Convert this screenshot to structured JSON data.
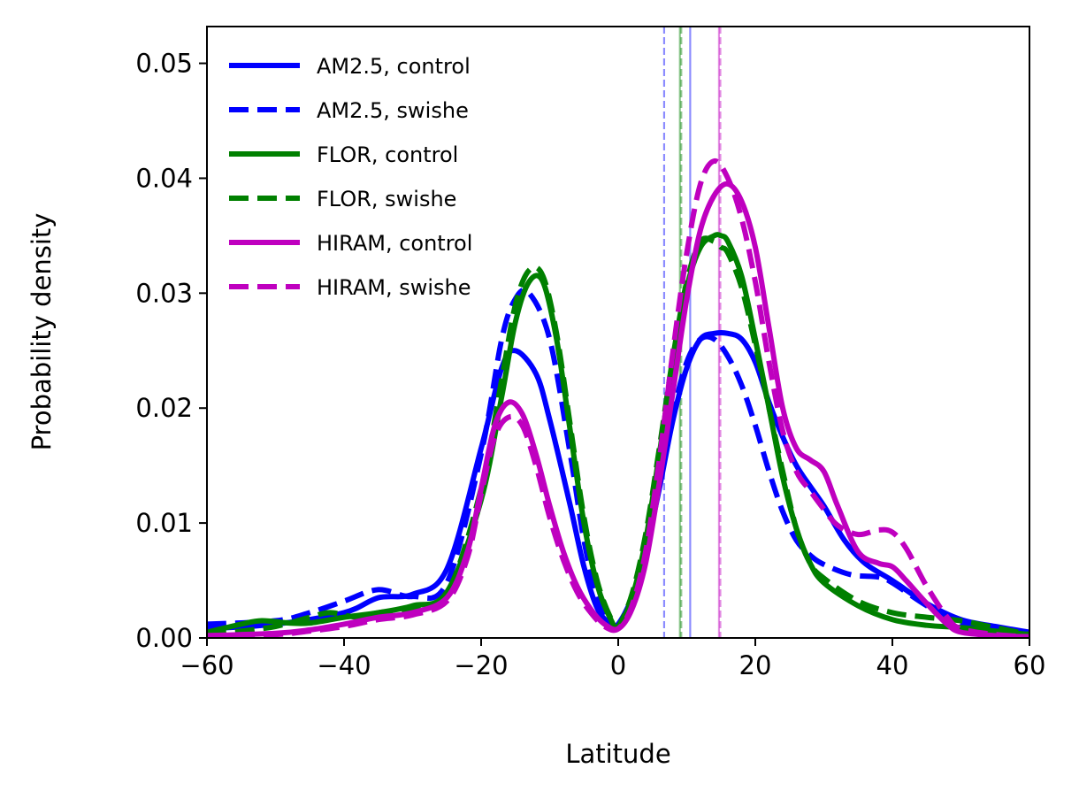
{
  "chart_data": {
    "type": "line",
    "xlabel": "Latitude",
    "ylabel": "Probability density",
    "xlim": [
      -60,
      60
    ],
    "ylim": [
      0,
      0.0532
    ],
    "xticks": [
      -60,
      -40,
      -20,
      0,
      20,
      40,
      60
    ],
    "xtick_labels": [
      "−60",
      "−40",
      "−20",
      "0",
      "20",
      "40",
      "60"
    ],
    "yticks": [
      0,
      0.01,
      0.02,
      0.03,
      0.04,
      0.05
    ],
    "ytick_labels": [
      "0.00",
      "0.01",
      "0.02",
      "0.03",
      "0.04",
      "0.05"
    ],
    "grid": false,
    "legend_position": "top-left",
    "series": [
      {
        "name": "AM2.5, control",
        "color": "#0000ff",
        "dash": "solid",
        "mean_line": 10.5,
        "x": [
          -60,
          -50,
          -40,
          -35,
          -30,
          -25,
          -20,
          -17,
          -15,
          -12,
          -10,
          -7,
          -5,
          -3,
          -1,
          0,
          2,
          4,
          6,
          8,
          10,
          12,
          14,
          16,
          18,
          20,
          22,
          24,
          26,
          28,
          30,
          33,
          36,
          40,
          45,
          50,
          55,
          60
        ],
        "values": [
          0.0008,
          0.0012,
          0.0022,
          0.0035,
          0.0038,
          0.006,
          0.0165,
          0.0235,
          0.025,
          0.023,
          0.019,
          0.0115,
          0.0062,
          0.0025,
          0.0012,
          0.0012,
          0.0035,
          0.0075,
          0.013,
          0.019,
          0.0235,
          0.026,
          0.0265,
          0.0265,
          0.026,
          0.024,
          0.0205,
          0.0175,
          0.015,
          0.0132,
          0.0115,
          0.0085,
          0.0065,
          0.005,
          0.003,
          0.0016,
          0.001,
          0.0005
        ]
      },
      {
        "name": "AM2.5, swishe",
        "color": "#0000ff",
        "dash": "dashed",
        "mean_line": 6.7,
        "x": [
          -60,
          -50,
          -45,
          -40,
          -35,
          -30,
          -25,
          -20,
          -17,
          -15,
          -13,
          -10,
          -7,
          -5,
          -3,
          -1,
          0,
          2,
          4,
          6,
          8,
          10,
          12,
          14,
          16,
          18,
          20,
          22,
          24,
          26,
          28,
          30,
          34,
          38,
          40,
          45,
          50,
          55,
          60
        ],
        "values": [
          0.0012,
          0.0015,
          0.0022,
          0.0032,
          0.0042,
          0.0036,
          0.0048,
          0.016,
          0.026,
          0.0295,
          0.03,
          0.026,
          0.016,
          0.0085,
          0.0035,
          0.0012,
          0.001,
          0.003,
          0.0075,
          0.0135,
          0.0195,
          0.024,
          0.026,
          0.026,
          0.0245,
          0.022,
          0.0185,
          0.0145,
          0.011,
          0.0085,
          0.0072,
          0.0064,
          0.0055,
          0.0053,
          0.0048,
          0.0028,
          0.0012,
          0.0006,
          0.0003
        ]
      },
      {
        "name": "FLOR, control",
        "color": "#008000",
        "dash": "solid",
        "mean_line": 9.0,
        "x": [
          -60,
          -55,
          -52,
          -48,
          -45,
          -40,
          -35,
          -30,
          -25,
          -20,
          -17,
          -15,
          -13,
          -11,
          -9,
          -7,
          -5,
          -3,
          -1,
          0,
          2,
          4,
          6,
          8,
          10,
          12,
          14,
          15,
          16,
          18,
          20,
          22,
          24,
          26,
          28,
          30,
          35,
          40,
          45,
          50,
          55,
          60
        ],
        "values": [
          0.0005,
          0.0012,
          0.0015,
          0.0013,
          0.0013,
          0.0018,
          0.0022,
          0.0028,
          0.004,
          0.012,
          0.021,
          0.0275,
          0.031,
          0.031,
          0.026,
          0.018,
          0.01,
          0.0045,
          0.0015,
          0.001,
          0.0035,
          0.0085,
          0.016,
          0.024,
          0.0305,
          0.034,
          0.035,
          0.035,
          0.0345,
          0.0315,
          0.026,
          0.02,
          0.014,
          0.0095,
          0.0065,
          0.0048,
          0.0028,
          0.0016,
          0.0011,
          0.0009,
          0.0006,
          0.0003
        ]
      },
      {
        "name": "FLOR, swishe",
        "color": "#008000",
        "dash": "dashed",
        "mean_line": 9.2,
        "x": [
          -60,
          -55,
          -50,
          -45,
          -42,
          -38,
          -35,
          -30,
          -25,
          -20,
          -17,
          -15,
          -13,
          -11,
          -9,
          -7,
          -5,
          -3,
          -1,
          0,
          2,
          4,
          6,
          8,
          10,
          12,
          14,
          15,
          16,
          18,
          20,
          22,
          24,
          26,
          28,
          30,
          35,
          40,
          45,
          50,
          55,
          60
        ],
        "values": [
          0.0003,
          0.0006,
          0.001,
          0.0018,
          0.0022,
          0.0018,
          0.0022,
          0.0026,
          0.0038,
          0.013,
          0.0225,
          0.029,
          0.032,
          0.0315,
          0.0265,
          0.0185,
          0.0105,
          0.0048,
          0.0016,
          0.001,
          0.0038,
          0.009,
          0.0165,
          0.0245,
          0.031,
          0.0345,
          0.0345,
          0.034,
          0.0335,
          0.0305,
          0.0255,
          0.02,
          0.0145,
          0.0095,
          0.0065,
          0.0052,
          0.0032,
          0.0022,
          0.0018,
          0.0015,
          0.0009,
          0.0003
        ]
      },
      {
        "name": "HIRAM, control",
        "color": "#bf00bf",
        "dash": "solid",
        "mean_line": 14.7,
        "x": [
          -60,
          -50,
          -45,
          -40,
          -35,
          -30,
          -25,
          -22,
          -20,
          -18,
          -16,
          -14,
          -12,
          -10,
          -8,
          -6,
          -4,
          -2,
          0,
          2,
          4,
          6,
          8,
          10,
          12,
          14,
          16,
          18,
          20,
          22,
          24,
          26,
          28,
          30,
          32,
          35,
          38,
          40,
          42,
          45,
          48,
          50,
          55,
          60
        ],
        "values": [
          0.0002,
          0.0004,
          0.0007,
          0.0012,
          0.0018,
          0.0022,
          0.0035,
          0.0075,
          0.013,
          0.0185,
          0.0205,
          0.0195,
          0.016,
          0.0115,
          0.0075,
          0.0045,
          0.0025,
          0.0012,
          0.0008,
          0.0025,
          0.0065,
          0.0135,
          0.0215,
          0.0295,
          0.0355,
          0.0385,
          0.0395,
          0.038,
          0.034,
          0.027,
          0.02,
          0.0165,
          0.0155,
          0.0145,
          0.0115,
          0.0075,
          0.0065,
          0.0062,
          0.005,
          0.003,
          0.0012,
          0.0005,
          0.0002,
          0.0001
        ]
      },
      {
        "name": "HIRAM, swishe",
        "color": "#bf00bf",
        "dash": "dashed",
        "mean_line": 14.9,
        "x": [
          -60,
          -50,
          -45,
          -40,
          -35,
          -30,
          -25,
          -22,
          -20,
          -18,
          -16,
          -14,
          -12,
          -10,
          -8,
          -6,
          -4,
          -2,
          0,
          2,
          4,
          6,
          8,
          10,
          12,
          14,
          16,
          18,
          20,
          22,
          24,
          26,
          28,
          30,
          32,
          35,
          38,
          40,
          42,
          45,
          48,
          50,
          55,
          60
        ],
        "values": [
          0.0002,
          0.0003,
          0.0006,
          0.001,
          0.0016,
          0.002,
          0.0032,
          0.007,
          0.0125,
          0.0175,
          0.0192,
          0.0185,
          0.015,
          0.0105,
          0.0068,
          0.004,
          0.0022,
          0.001,
          0.0008,
          0.0028,
          0.0075,
          0.0155,
          0.025,
          0.0335,
          0.0395,
          0.0415,
          0.04,
          0.0365,
          0.031,
          0.024,
          0.018,
          0.0145,
          0.0128,
          0.0112,
          0.0098,
          0.009,
          0.0094,
          0.0092,
          0.0078,
          0.0045,
          0.0018,
          0.0008,
          0.0003,
          0.0001
        ]
      }
    ]
  }
}
